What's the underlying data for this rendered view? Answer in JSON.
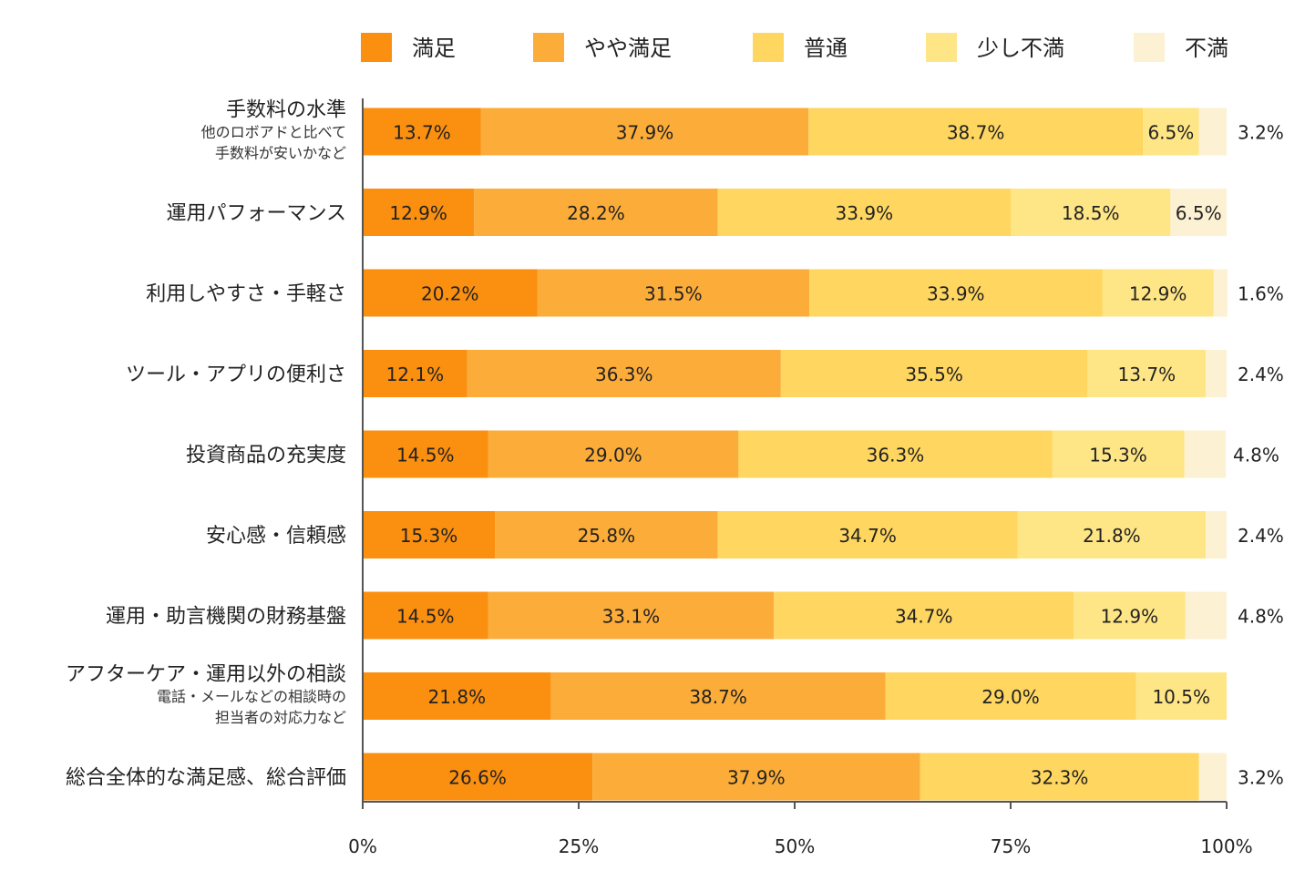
{
  "chart_data": {
    "type": "bar",
    "orientation": "horizontal",
    "stacked": true,
    "unit": "%",
    "xlim": [
      0,
      100
    ],
    "x_ticks": [
      "0%",
      "25%",
      "50%",
      "75%",
      "100%"
    ],
    "x_tick_values": [
      0,
      25,
      50,
      75,
      100
    ],
    "legend_position": "top",
    "categories": [
      {
        "label": "手数料の水準",
        "sub": [
          "他のロボアドと比べて",
          "手数料が安いかなど"
        ]
      },
      {
        "label": "運用パフォーマンス",
        "sub": []
      },
      {
        "label": "利用しやすさ・手軽さ",
        "sub": []
      },
      {
        "label": "ツール・アプリの便利さ",
        "sub": []
      },
      {
        "label": "投資商品の充実度",
        "sub": []
      },
      {
        "label": "安心感・信頼感",
        "sub": []
      },
      {
        "label": "運用・助言機関の財務基盤",
        "sub": []
      },
      {
        "label": "アフターケア・運用以外の相談",
        "sub": [
          "電話・メールなどの相談時の",
          "担当者の対応力など"
        ]
      },
      {
        "label": "総合全体的な満足感、総合評価",
        "sub": []
      }
    ],
    "series": [
      {
        "name": "満足",
        "color": "#FA8F10",
        "values": [
          13.7,
          12.9,
          20.2,
          12.1,
          14.5,
          15.3,
          14.5,
          21.8,
          26.6
        ]
      },
      {
        "name": "やや満足",
        "color": "#FCAC38",
        "values": [
          37.9,
          28.2,
          31.5,
          36.3,
          29.0,
          25.8,
          33.1,
          38.7,
          37.9
        ]
      },
      {
        "name": "普通",
        "color": "#FED660",
        "values": [
          38.7,
          33.9,
          33.9,
          35.5,
          36.3,
          34.7,
          34.7,
          29.0,
          32.3
        ]
      },
      {
        "name": "少し不満",
        "color": "#FEE586",
        "values": [
          6.5,
          18.5,
          12.9,
          13.7,
          15.3,
          21.8,
          12.9,
          10.5,
          0
        ]
      },
      {
        "name": "不満",
        "color": "#FDF1D3",
        "values": [
          3.2,
          6.5,
          1.6,
          2.4,
          4.8,
          2.4,
          4.8,
          0,
          3.2
        ]
      }
    ]
  }
}
